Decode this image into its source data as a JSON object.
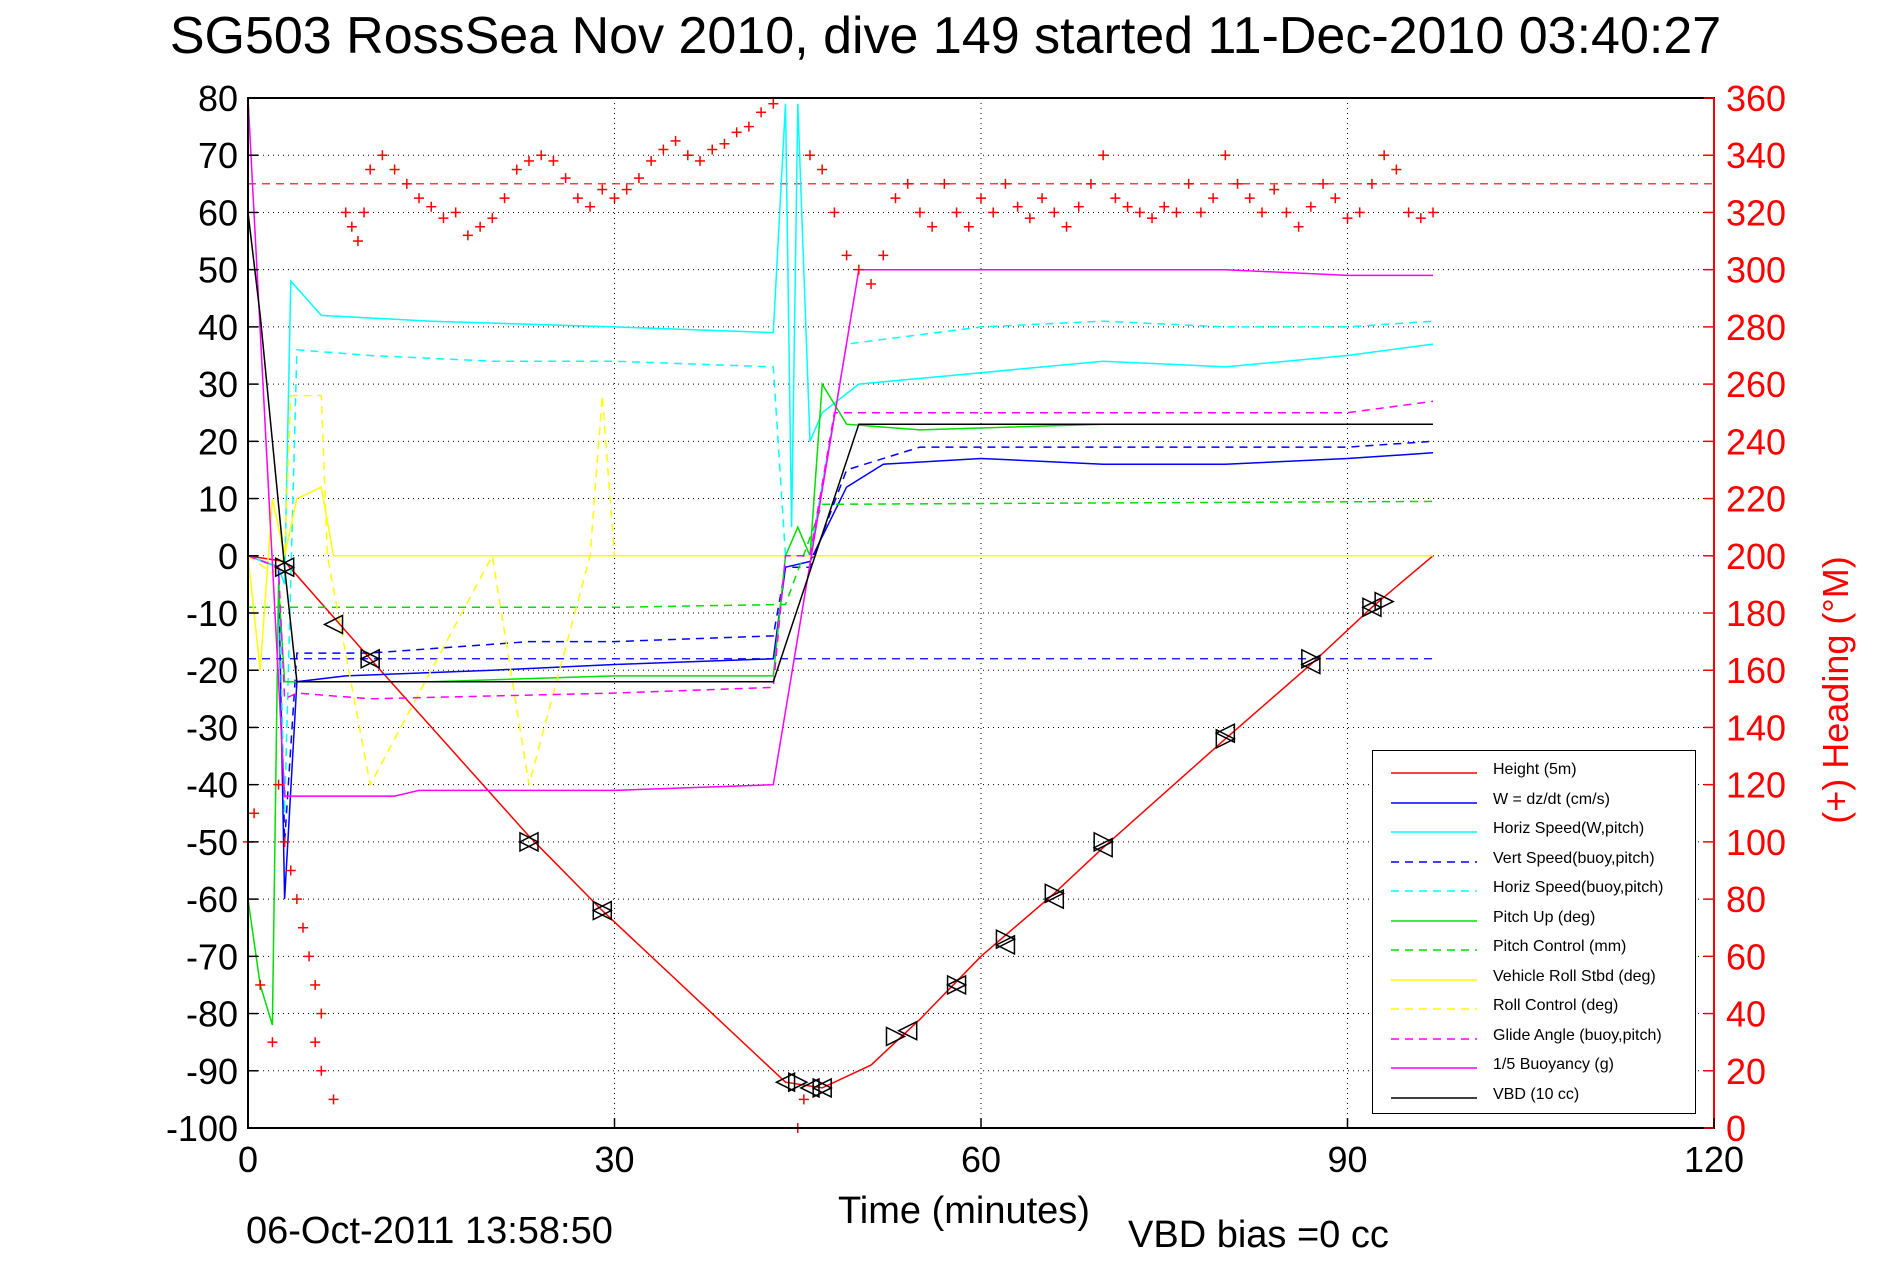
{
  "title": "SG503 RossSea Nov 2010, dive 149 started 11-Dec-2010 03:40:27",
  "footer": {
    "timestamp": "06-Oct-2011 13:58:50",
    "vbd_bias": "VBD bias =0 cc"
  },
  "chart_data": {
    "type": "line",
    "title": "SG503 RossSea Nov 2010, dive 149 started 11-Dec-2010 03:40:27",
    "xlabel": "Time (minutes)",
    "ylabel": "",
    "y2label": "(+) Heading (°M)",
    "xlim": [
      0,
      120
    ],
    "ylim": [
      -100,
      80
    ],
    "y2lim": [
      0,
      360
    ],
    "xticks": [
      "0",
      "30",
      "60",
      "90",
      "120"
    ],
    "yticks": [
      "80",
      "70",
      "60",
      "50",
      "40",
      "30",
      "20",
      "10",
      "0",
      "-10",
      "-20",
      "-30",
      "-40",
      "-50",
      "-60",
      "-70",
      "-80",
      "-90",
      "-100"
    ],
    "y2ticks": [
      "360",
      "340",
      "320",
      "300",
      "280",
      "260",
      "240",
      "220",
      "200",
      "180",
      "160",
      "140",
      "120",
      "100",
      "80",
      "60",
      "40",
      "20",
      "0"
    ],
    "grid": true,
    "legend_position": "bottom-right",
    "series": [
      {
        "name": "Height (5m)",
        "color": "#ff0000",
        "dash": "solid",
        "x": [
          0,
          3,
          10,
          23,
          29,
          44,
          47,
          51,
          55,
          60,
          66,
          70,
          80,
          87,
          92,
          97
        ],
        "y": [
          0,
          -1,
          -18,
          -49,
          -62,
          -92,
          -93,
          -89,
          -81,
          -70,
          -59,
          -51,
          -32,
          -19,
          -9,
          0
        ]
      },
      {
        "name": "W = dz/dt (cm/s)",
        "color": "#0000ff",
        "dash": "solid",
        "x": [
          0,
          2.5,
          3,
          4,
          8,
          20,
          30,
          43,
          44,
          46,
          49,
          52,
          60,
          70,
          80,
          90,
          97
        ],
        "y": [
          0,
          -2,
          -60,
          -22,
          -21,
          -20,
          -19,
          -18,
          -2,
          -1,
          12,
          16,
          17,
          16,
          16,
          17,
          18
        ]
      },
      {
        "name": "Horiz Speed(W,pitch)",
        "color": "#00ffff",
        "dash": "solid",
        "x": [
          0,
          2.5,
          3,
          3.5,
          6,
          15,
          30,
          43,
          44,
          44.5,
          45,
          46,
          47,
          50,
          60,
          70,
          80,
          90,
          97
        ],
        "y": [
          0,
          -2,
          -5,
          48,
          42,
          41,
          40,
          39,
          79,
          5,
          79,
          20,
          25,
          30,
          32,
          34,
          33,
          35,
          37
        ]
      },
      {
        "name": "Vert Speed(buoy,pitch)",
        "color": "#0000ff",
        "dash": "dashed",
        "x": [
          0,
          2.5,
          3,
          4,
          10,
          23,
          30,
          43,
          44,
          46,
          49,
          55,
          70,
          90,
          97
        ],
        "y": [
          0,
          -2,
          -50,
          -17,
          -17,
          -15,
          -15,
          -14,
          -2,
          -2,
          15,
          19,
          19,
          19,
          20
        ]
      },
      {
        "name": "Horiz Speed(buoy,pitch)",
        "color": "#00ffff",
        "dash": "dashed",
        "x": [
          0,
          2.5,
          3,
          4,
          10,
          20,
          30,
          43,
          44,
          46,
          49,
          60,
          70,
          80,
          90,
          97
        ],
        "y": [
          0,
          -2,
          -45,
          36,
          35,
          34,
          34,
          33,
          0,
          0,
          37,
          40,
          41,
          40,
          40,
          41
        ]
      },
      {
        "name": "Pitch Up (deg)",
        "color": "#00e000",
        "dash": "solid",
        "x": [
          0,
          1,
          2,
          2.5,
          3,
          5,
          15,
          30,
          43,
          44,
          45,
          46,
          47,
          49,
          55,
          70,
          90,
          97
        ],
        "y": [
          -60,
          -75,
          -82,
          -5,
          -22,
          -22,
          -22,
          -21,
          -21,
          0,
          5,
          0,
          30,
          23,
          22,
          23,
          23,
          23
        ]
      },
      {
        "name": "Pitch Control (mm)",
        "color": "#00e000",
        "dash": "dashed",
        "x": [
          0,
          10,
          30,
          44,
          47,
          97
        ],
        "y": [
          -9,
          -9,
          -9,
          -8.5,
          9,
          9.5
        ]
      },
      {
        "name": "Vehicle Roll Stbd (deg)",
        "color": "#ffff00",
        "dash": "solid",
        "x": [
          0,
          1,
          2,
          3,
          4,
          6,
          7,
          8,
          20,
          44,
          50,
          97
        ],
        "y": [
          0,
          -20,
          10,
          0,
          10,
          12,
          0,
          0,
          0,
          0,
          0,
          0
        ]
      },
      {
        "name": "Roll Control (deg)",
        "color": "#ffff00",
        "dash": "dashed",
        "x": [
          0,
          2,
          3,
          3.5,
          6,
          6.5,
          10,
          20,
          23,
          28,
          29,
          30,
          44,
          53,
          97
        ],
        "y": [
          0,
          -3,
          0,
          28,
          28,
          0,
          -40,
          0,
          -40,
          0,
          28,
          0,
          0,
          0,
          0
        ]
      },
      {
        "name": "Glide Angle (buoy,pitch)",
        "color": "#ff00ff",
        "dash": "dashed",
        "x": [
          0,
          2.5,
          3,
          4,
          10,
          30,
          43,
          44,
          46,
          48,
          55,
          70,
          90,
          97
        ],
        "y": [
          0,
          -2,
          -25,
          -24,
          -25,
          -24,
          -23,
          0,
          0,
          25,
          25,
          25,
          25,
          27
        ]
      },
      {
        "name": "1/5 Buoyancy (g)",
        "color": "#ff00ff",
        "dash": "solid",
        "x": [
          0,
          3,
          5,
          12,
          14,
          20,
          30,
          43,
          50,
          60,
          70,
          80,
          90,
          97
        ],
        "y": [
          80,
          -42,
          -42,
          -42,
          -41,
          -41,
          -41,
          -40,
          50,
          50,
          50,
          50,
          49,
          49
        ]
      },
      {
        "name": "VBD (10 cc)",
        "color": "#000000",
        "dash": "solid",
        "x": [
          0,
          1,
          2,
          3,
          4,
          30,
          43,
          50,
          97
        ],
        "y": [
          60,
          42,
          20,
          -2,
          -22,
          -22,
          -22,
          23,
          23
        ]
      }
    ],
    "reference_lines": [
      {
        "axis": "right",
        "value": 330,
        "color": "#ff0000",
        "dash": "dashed"
      },
      {
        "axis": "left",
        "value": -18,
        "color": "#0000ff",
        "dash": "dashed",
        "x_range": [
          0,
          97
        ]
      }
    ],
    "heading_points": {
      "name": "(+) Heading",
      "color": "#ff0000",
      "marker": "+",
      "x": [
        0,
        0.5,
        1,
        2,
        2.5,
        3,
        3.5,
        4,
        4.5,
        5,
        5.5,
        6,
        5.5,
        6,
        7,
        8,
        8.5,
        9,
        9.5,
        10,
        11,
        12,
        13,
        14,
        15,
        16,
        17,
        18,
        19,
        20,
        21,
        22,
        23,
        24,
        25,
        26,
        27,
        28,
        29,
        30,
        31,
        32,
        33,
        34,
        35,
        36,
        37,
        38,
        39,
        40,
        41,
        42,
        43,
        44,
        45,
        45.5,
        46,
        47,
        48,
        49,
        50,
        51,
        52,
        53,
        54,
        55,
        56,
        57,
        58,
        59,
        60,
        61,
        62,
        63,
        64,
        65,
        66,
        67,
        68,
        69,
        70,
        71,
        72,
        73,
        74,
        75,
        76,
        77,
        78,
        79,
        80,
        81,
        82,
        83,
        84,
        85,
        86,
        87,
        88,
        89,
        90,
        91,
        92,
        93,
        94,
        95,
        96,
        97
      ],
      "y": [
        100,
        110,
        50,
        30,
        120,
        100,
        90,
        80,
        70,
        60,
        50,
        40,
        30,
        20,
        10,
        320,
        315,
        310,
        320,
        335,
        340,
        335,
        330,
        325,
        322,
        318,
        320,
        312,
        315,
        318,
        325,
        335,
        338,
        340,
        338,
        332,
        325,
        322,
        328,
        325,
        328,
        332,
        338,
        342,
        345,
        340,
        338,
        342,
        344,
        348,
        350,
        355,
        358,
        362,
        0,
        10,
        340,
        335,
        320,
        305,
        300,
        295,
        305,
        325,
        330,
        320,
        315,
        330,
        320,
        315,
        325,
        320,
        330,
        322,
        318,
        325,
        320,
        315,
        322,
        330,
        340,
        325,
        322,
        320,
        318,
        322,
        320,
        330,
        320,
        325,
        340,
        330,
        325,
        320,
        328,
        320,
        315,
        322,
        330,
        325,
        318,
        320,
        330,
        340,
        335,
        320,
        318,
        320
      ]
    },
    "markers": {
      "left": {
        "x": [
          3,
          7,
          10,
          23,
          29,
          44,
          46,
          47,
          54,
          58,
          62,
          66,
          70,
          80,
          87,
          92
        ],
        "y": [
          -2,
          -12,
          -18,
          -50,
          -62,
          -92,
          -93,
          -93,
          -83,
          -75,
          -68,
          -60,
          -51,
          -31,
          -19,
          -9
        ]
      },
      "right": {
        "x": [
          3,
          10,
          23,
          29,
          45,
          47,
          53,
          58,
          62,
          66,
          70,
          80,
          87,
          92,
          93
        ],
        "y": [
          -2,
          -18,
          -50,
          -62,
          -92,
          -93,
          -84,
          -75,
          -67,
          -59,
          -50,
          -32,
          -18,
          -9,
          -8
        ]
      }
    }
  }
}
